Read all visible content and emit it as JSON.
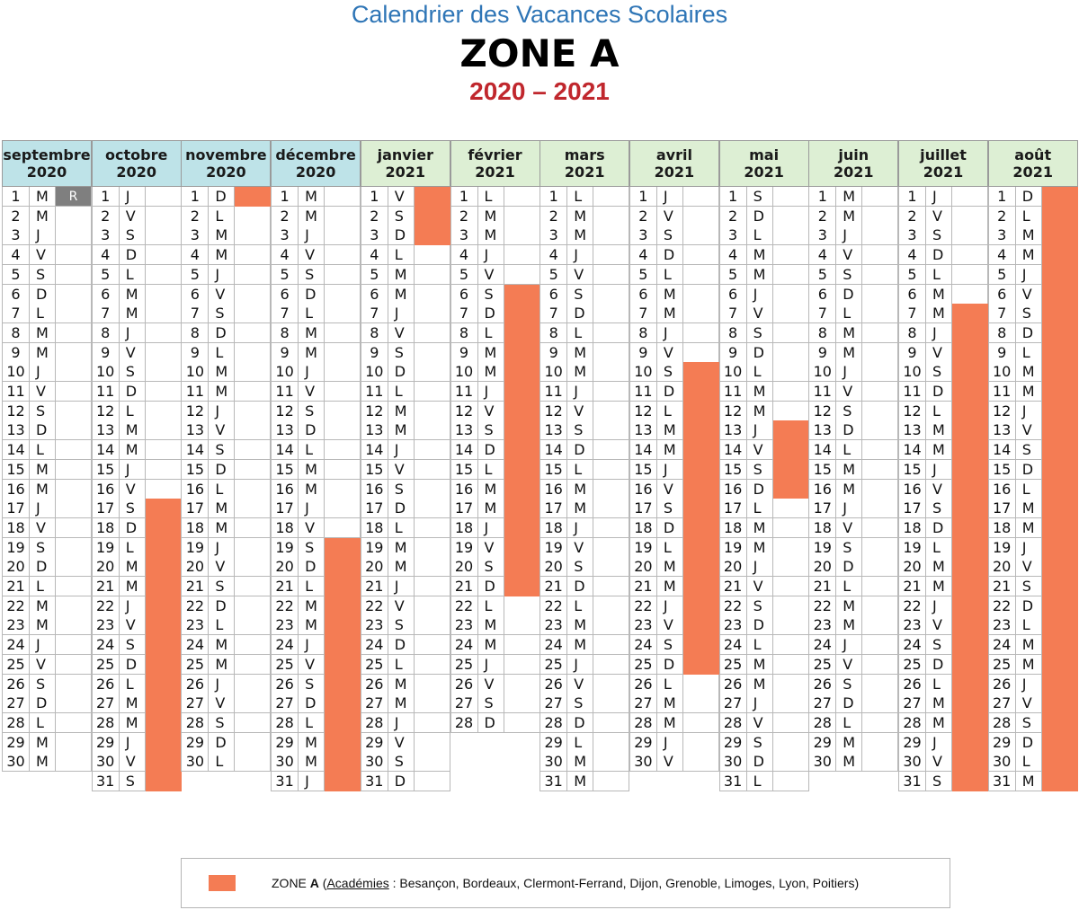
{
  "header": {
    "subtitle": "Calendrier des Vacances Scolaires",
    "zone": "ZONE A",
    "years": "2020 – 2021"
  },
  "colors": {
    "vacation": "#F47C54",
    "rentree": "#7F7F7F",
    "header_2020": "#BEE3E8",
    "header_2021": "#DDEFD4",
    "subtitle": "#2E75B6",
    "years": "#C0272D"
  },
  "rentree_label": "R",
  "months": [
    {
      "name": "septembre",
      "year": "2020",
      "start": "M",
      "days": 30,
      "vacation": [],
      "rentree": [
        1
      ]
    },
    {
      "name": "octobre",
      "year": "2020",
      "start": "J",
      "days": 31,
      "vacation": [
        [
          17,
          31
        ]
      ],
      "rentree": []
    },
    {
      "name": "novembre",
      "year": "2020",
      "start": "D",
      "days": 30,
      "vacation": [
        [
          1,
          1
        ]
      ],
      "rentree": []
    },
    {
      "name": "décembre",
      "year": "2020",
      "start": "M",
      "days": 31,
      "vacation": [
        [
          19,
          31
        ]
      ],
      "rentree": []
    },
    {
      "name": "janvier",
      "year": "2021",
      "start": "V",
      "days": 31,
      "vacation": [
        [
          1,
          3
        ]
      ],
      "rentree": []
    },
    {
      "name": "février",
      "year": "2021",
      "start": "L",
      "days": 28,
      "vacation": [
        [
          6,
          21
        ]
      ],
      "rentree": []
    },
    {
      "name": "mars",
      "year": "2021",
      "start": "L",
      "days": 31,
      "vacation": [],
      "rentree": []
    },
    {
      "name": "avril",
      "year": "2021",
      "start": "J",
      "days": 30,
      "vacation": [
        [
          10,
          25
        ]
      ],
      "rentree": []
    },
    {
      "name": "mai",
      "year": "2021",
      "start": "S",
      "days": 31,
      "vacation": [
        [
          13,
          16
        ]
      ],
      "rentree": []
    },
    {
      "name": "juin",
      "year": "2021",
      "start": "M",
      "days": 30,
      "vacation": [],
      "rentree": []
    },
    {
      "name": "juillet",
      "year": "2021",
      "start": "J",
      "days": 31,
      "vacation": [
        [
          7,
          31
        ]
      ],
      "rentree": []
    },
    {
      "name": "août",
      "year": "2021",
      "start": "D",
      "days": 31,
      "vacation": [
        [
          1,
          31
        ]
      ],
      "rentree": []
    }
  ],
  "weekdays": [
    "L",
    "M",
    "M",
    "J",
    "V",
    "S",
    "D"
  ],
  "legend": {
    "zone_word": "ZONE",
    "zone_letter": "A",
    "open_paren": "(",
    "academies_word": "Académies",
    "academies_list": " : Besançon, Bordeaux, Clermont-Ferrand, Dijon, Grenoble, Limoges, Lyon, Poitiers)"
  }
}
